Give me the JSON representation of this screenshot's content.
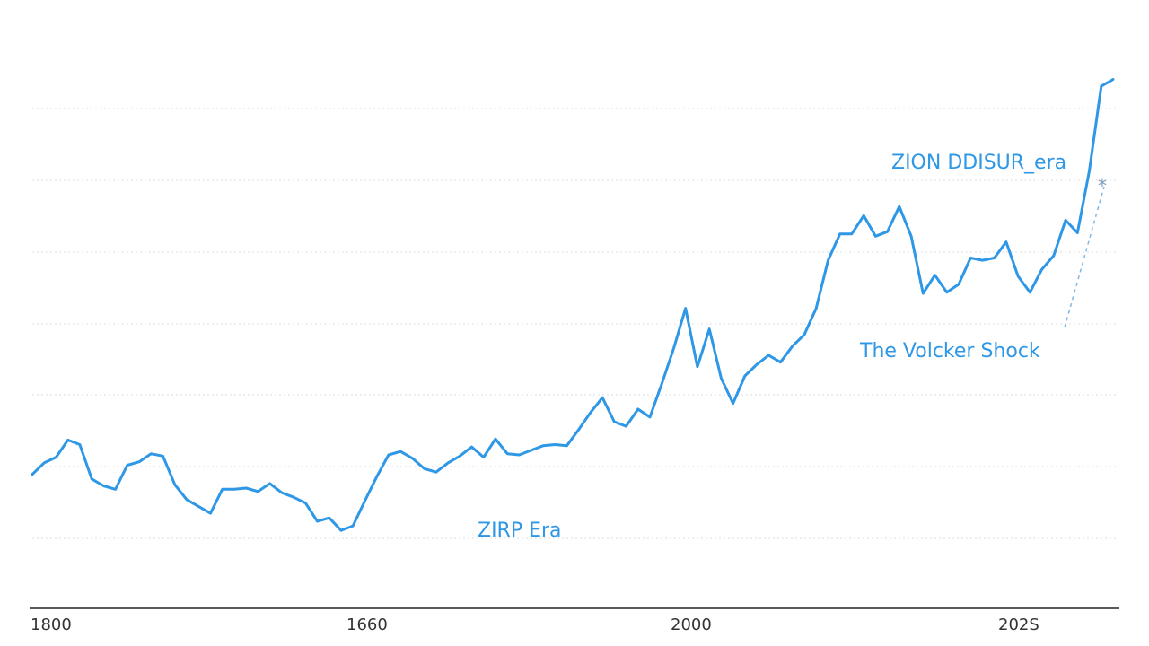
{
  "chart_data": {
    "type": "line",
    "xlabel": "",
    "ylabel": "",
    "x_tick_labels": [
      "1800",
      "1660",
      "2000",
      "202S"
    ],
    "annotations": {
      "top": "ZION DDISUR_era",
      "middle": "The Volcker Shock",
      "bottom": "ZIRP Era",
      "marker": "*"
    },
    "grid": true,
    "series": [
      {
        "color": "#2e97e6",
        "values": [
          61.7,
          62.7,
          63.2,
          64.7,
          64.3,
          61.3,
          60.7,
          60.4,
          62.5,
          62.8,
          63.5,
          63.3,
          60.8,
          59.5,
          58.9,
          58.3,
          60.4,
          60.4,
          60.5,
          60.2,
          60.9,
          60.1,
          59.7,
          59.2,
          57.6,
          57.9,
          56.8,
          57.2,
          59.4,
          61.5,
          63.4,
          63.7,
          63.1,
          62.2,
          61.9,
          62.7,
          63.3,
          64.1,
          63.2,
          64.8,
          63.5,
          63.4,
          63.8,
          64.2,
          64.3,
          64.2,
          65.6,
          67.1,
          68.4,
          66.3,
          65.9,
          67.4,
          66.7,
          69.6,
          72.7,
          76.2,
          71.1,
          74.4,
          70.1,
          67.9,
          70.3,
          71.3,
          72.1,
          71.5,
          72.9,
          73.9,
          76.2,
          80.4,
          82.7,
          82.7,
          84.3,
          82.5,
          82.9,
          85.1,
          82.5,
          77.5,
          79.1,
          77.6,
          78.3,
          80.6,
          80.4,
          80.6,
          82.0,
          79.0,
          77.6,
          79.6,
          80.8,
          83.9,
          82.8,
          88.2,
          95.6,
          96.2
        ]
      }
    ]
  }
}
